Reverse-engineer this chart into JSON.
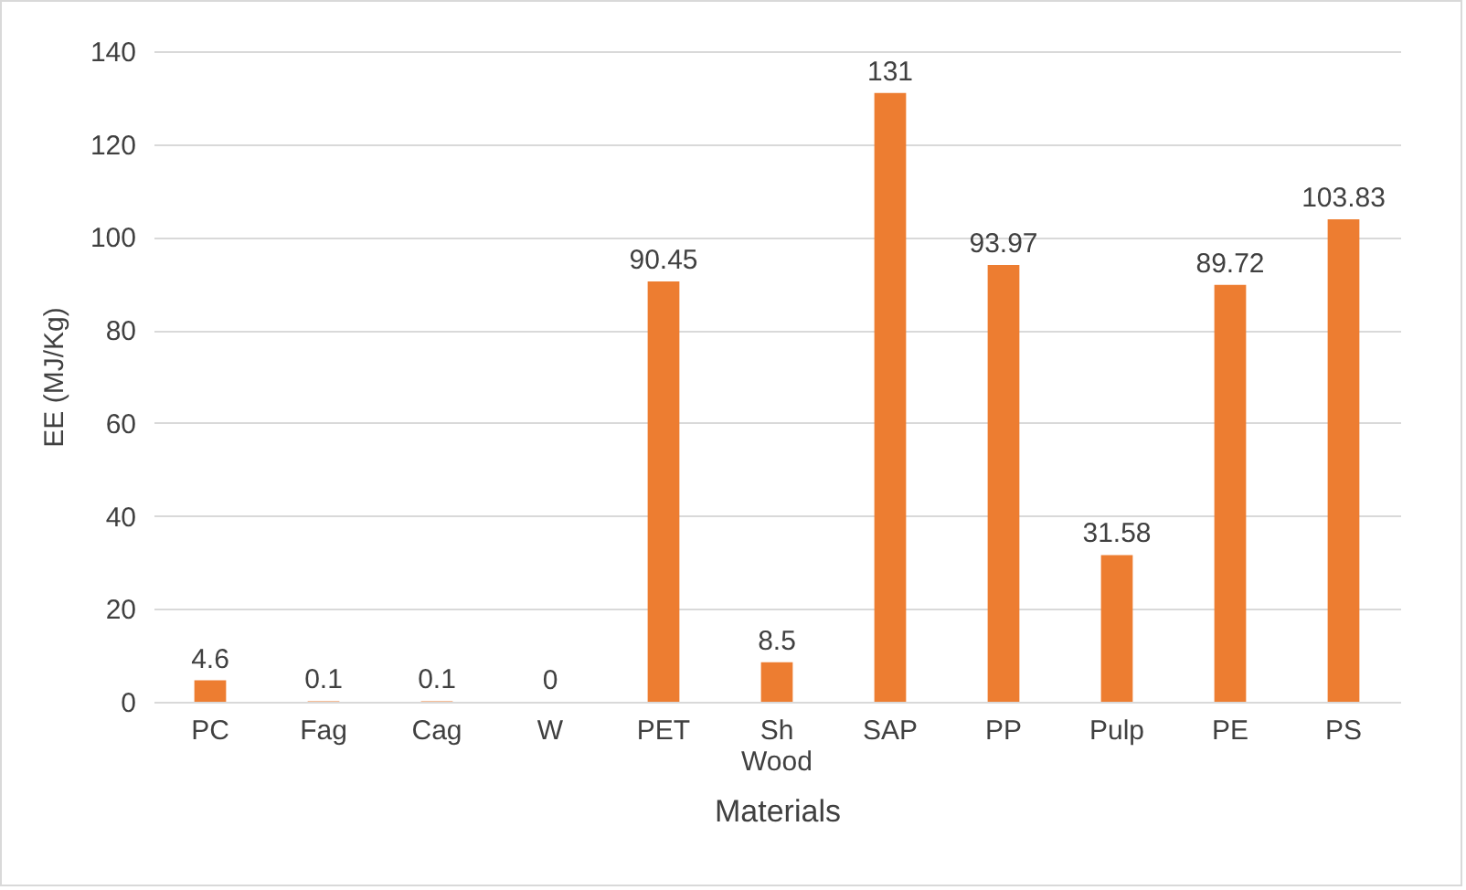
{
  "chart_data": {
    "type": "bar",
    "xlabel": "Materials",
    "ylabel": "EE (MJ/Kg)",
    "categories": [
      "PC",
      "Fag",
      "Cag",
      "W",
      "PET",
      "Sh Wood",
      "SAP",
      "PP",
      "Pulp",
      "PE",
      "PS"
    ],
    "values": [
      4.6,
      0.1,
      0.1,
      0,
      90.45,
      8.5,
      131,
      93.97,
      31.58,
      89.72,
      103.83
    ],
    "color": "#ed7d31",
    "ylim": [
      0,
      140
    ],
    "yticks": [
      0,
      20,
      40,
      60,
      80,
      100,
      120,
      140
    ],
    "grid": "y",
    "data_labels": true
  }
}
